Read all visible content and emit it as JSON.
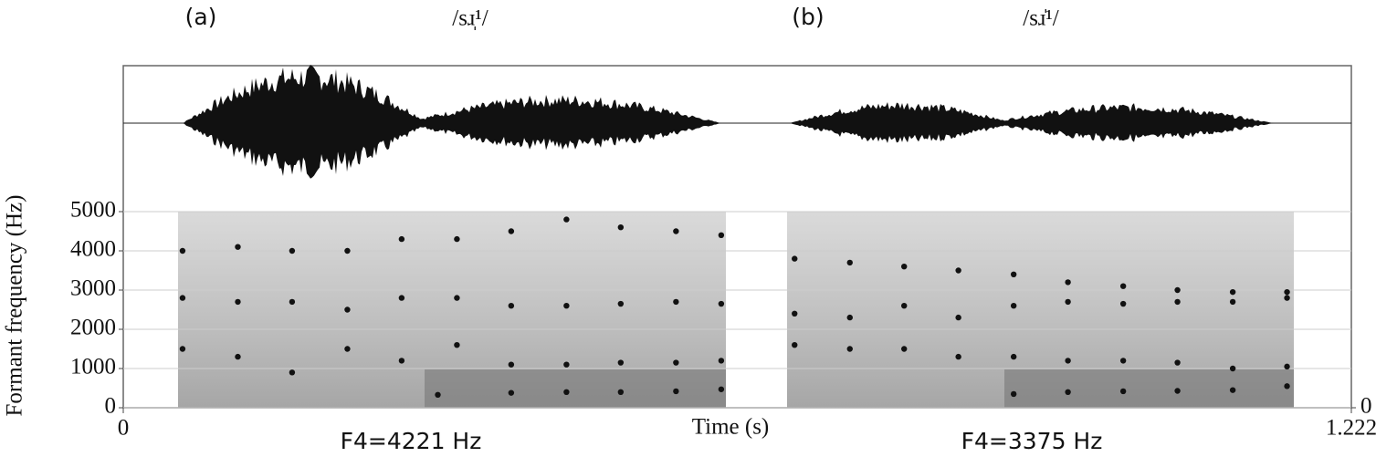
{
  "chart_data": {
    "type": "scatter",
    "panel_labels": [
      "(a)",
      "(b)"
    ],
    "transcriptions": [
      "/sɹ̩¹/",
      "/sɹ̍¹/"
    ],
    "annotations": [
      "F4=4221 Hz",
      "F4=3375 Hz"
    ],
    "ylabel": "Formant frequency (Hz)",
    "xlabel": "Time (s)",
    "xlim": [
      0,
      1.222
    ],
    "xticks": [
      0,
      1.222
    ],
    "ylim": [
      0,
      5000
    ],
    "yticks": [
      0,
      1000,
      2000,
      3000,
      4000,
      5000
    ],
    "y2lim": [
      0,
      5000
    ],
    "y2ticks": [
      0
    ],
    "grid": true,
    "series": [
      {
        "color": "#111111",
        "x": [
          0.313,
          0.386,
          0.441,
          0.495,
          0.55,
          0.595
        ],
        "values": [
          330,
          380,
          400,
          400,
          420,
          470
        ]
      },
      {
        "color": "#111111",
        "x": [
          0.059,
          0.114,
          0.168,
          0.223,
          0.277,
          0.332,
          0.386,
          0.441,
          0.495,
          0.55,
          0.595
        ],
        "values": [
          1500,
          1300,
          900,
          1500,
          1200,
          1600,
          1100,
          1100,
          1150,
          1150,
          1200
        ]
      },
      {
        "color": "#111111",
        "x": [
          0.059,
          0.114,
          0.168,
          0.223,
          0.277,
          0.332,
          0.386,
          0.441,
          0.495,
          0.55,
          0.595
        ],
        "values": [
          2800,
          2700,
          2700,
          2500,
          2800,
          2800,
          2600,
          2600,
          2650,
          2700,
          2650
        ]
      },
      {
        "color": "#111111",
        "x": [
          0.059,
          0.114,
          0.168,
          0.223,
          0.277,
          0.332,
          0.386,
          0.441,
          0.495,
          0.55,
          0.595
        ],
        "values": [
          4000,
          4100,
          4000,
          4000,
          4300,
          4300,
          4500,
          4800,
          4600,
          4500,
          4400
        ]
      },
      {
        "color": "#111111",
        "x": [
          0.886,
          0.94,
          0.995,
          1.049,
          1.104,
          1.158
        ],
        "values": [
          350,
          400,
          420,
          430,
          450,
          550
        ]
      },
      {
        "color": "#111111",
        "x": [
          0.668,
          0.723,
          0.777,
          0.831,
          0.886,
          0.94,
          0.995,
          1.049,
          1.104,
          1.158
        ],
        "values": [
          1600,
          1500,
          1500,
          1300,
          1300,
          1200,
          1200,
          1150,
          1000,
          1050
        ]
      },
      {
        "color": "#111111",
        "x": [
          0.668,
          0.723,
          0.777,
          0.831,
          0.886,
          0.94,
          0.995,
          1.049,
          1.104,
          1.158
        ],
        "values": [
          2400,
          2300,
          2600,
          2300,
          2600,
          2700,
          2650,
          2700,
          2700,
          2800
        ]
      },
      {
        "color": "#111111",
        "x": [
          0.668,
          0.723,
          0.777,
          0.831,
          0.886,
          0.94,
          0.995,
          1.049,
          1.104,
          1.158
        ],
        "values": [
          3800,
          3700,
          3600,
          3500,
          3400,
          3200,
          3100,
          3000,
          2950,
          2950
        ]
      }
    ]
  }
}
